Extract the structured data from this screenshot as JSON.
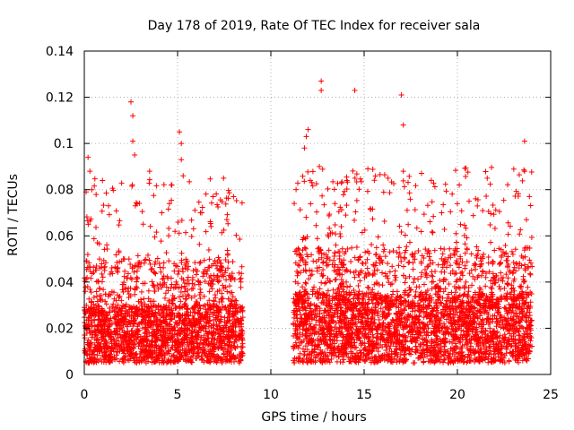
{
  "chart_data": {
    "type": "scatter",
    "title": "Day 178 of 2019, Rate Of TEC Index for receiver sala",
    "xlabel": "GPS time / hours",
    "ylabel": "ROTI / TECUs",
    "xlim": [
      0,
      25
    ],
    "ylim": [
      0,
      0.14
    ],
    "x_ticks": [
      0,
      5,
      10,
      15,
      20,
      25
    ],
    "y_ticks": [
      0,
      0.02,
      0.04,
      0.06,
      0.08,
      0.1,
      0.12,
      0.14
    ],
    "x_tick_labels": [
      "0",
      "5",
      "10",
      "15",
      "20",
      "25"
    ],
    "y_tick_labels": [
      "0",
      "0.02",
      "0.04",
      "0.06",
      "0.08",
      "0.1",
      "0.12",
      "0.14"
    ],
    "grid": true,
    "marker": "+",
    "color": "#ff0000",
    "series": [
      {
        "name": "ROTI",
        "segments": [
          {
            "x_start": 0.0,
            "x_end": 8.5,
            "typical_low": 0.005,
            "typical_high": 0.03
          },
          {
            "x_start": 11.2,
            "x_end": 24.0,
            "typical_low": 0.005,
            "typical_high": 0.035
          }
        ],
        "notable_points": [
          {
            "x": 0.2,
            "y": 0.094
          },
          {
            "x": 0.3,
            "y": 0.088
          },
          {
            "x": 0.4,
            "y": 0.08
          },
          {
            "x": 1.3,
            "y": 0.073
          },
          {
            "x": 2.5,
            "y": 0.118
          },
          {
            "x": 2.6,
            "y": 0.112
          },
          {
            "x": 2.6,
            "y": 0.101
          },
          {
            "x": 2.7,
            "y": 0.095
          },
          {
            "x": 3.5,
            "y": 0.088
          },
          {
            "x": 5.1,
            "y": 0.105
          },
          {
            "x": 5.2,
            "y": 0.1
          },
          {
            "x": 5.2,
            "y": 0.093
          },
          {
            "x": 5.3,
            "y": 0.086
          },
          {
            "x": 6.3,
            "y": 0.07
          },
          {
            "x": 6.9,
            "y": 0.077
          },
          {
            "x": 8.0,
            "y": 0.077
          },
          {
            "x": 11.8,
            "y": 0.098
          },
          {
            "x": 11.9,
            "y": 0.103
          },
          {
            "x": 12.0,
            "y": 0.106
          },
          {
            "x": 12.6,
            "y": 0.09
          },
          {
            "x": 12.7,
            "y": 0.127
          },
          {
            "x": 12.7,
            "y": 0.123
          },
          {
            "x": 14.5,
            "y": 0.123
          },
          {
            "x": 15.2,
            "y": 0.089
          },
          {
            "x": 17.0,
            "y": 0.121
          },
          {
            "x": 17.1,
            "y": 0.108
          },
          {
            "x": 17.1,
            "y": 0.088
          },
          {
            "x": 18.6,
            "y": 0.084
          },
          {
            "x": 20.1,
            "y": 0.082
          },
          {
            "x": 21.6,
            "y": 0.085
          },
          {
            "x": 23.6,
            "y": 0.101
          },
          {
            "x": 23.6,
            "y": 0.088
          },
          {
            "x": 23.7,
            "y": 0.067
          }
        ]
      }
    ]
  }
}
